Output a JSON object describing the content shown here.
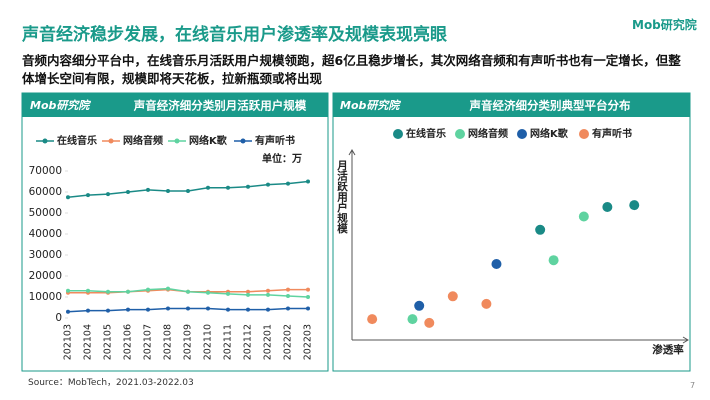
{
  "title": "声音经济稳步发展，在线音乐用户渗透率及规模表现亮眼",
  "logo": "Mob研究院",
  "subtitle": "音频内容细分平台中，在线音乐月活跃用户规模领跑，超6亿且稳步增长，其次网络音频和有声听书也有一定增长，但整体增长空间有限，规模即将天花板，拉新瓶颈或将出现",
  "source": "Source：MobTech，2021.03-2022.03",
  "page_number": "7",
  "chart_data": [
    {
      "type": "line",
      "title": "声音经济细分类别月活跃用户规模",
      "unit": "单位：万",
      "categories": [
        "202103",
        "202104",
        "202105",
        "202106",
        "202107",
        "202108",
        "202109",
        "202110",
        "202111",
        "202112",
        "202201",
        "202202",
        "202203"
      ],
      "series": [
        {
          "name": "在线音乐",
          "color": "#1a8a86",
          "values": [
            57500,
            58500,
            59000,
            60000,
            61000,
            60500,
            60500,
            62000,
            62000,
            62500,
            63500,
            64000,
            65000
          ]
        },
        {
          "name": "网络音频",
          "color": "#f08a5d",
          "values": [
            12000,
            12000,
            12000,
            12500,
            13000,
            13500,
            12500,
            12500,
            12500,
            12500,
            13000,
            13500,
            13500
          ]
        },
        {
          "name": "网络K歌",
          "color": "#5fd3a0",
          "values": [
            13000,
            13000,
            12500,
            12500,
            13500,
            14000,
            12500,
            12000,
            11500,
            11000,
            11000,
            10500,
            10000
          ]
        },
        {
          "name": "有声听书",
          "color": "#1f5fa8",
          "values": [
            3000,
            3500,
            3500,
            4000,
            4000,
            4500,
            4500,
            4500,
            4000,
            4000,
            4000,
            4500,
            4500
          ]
        }
      ],
      "ylim": [
        0,
        70000
      ],
      "yticks": [
        0,
        10000,
        20000,
        30000,
        40000,
        50000,
        60000,
        70000
      ],
      "legend": "top"
    },
    {
      "type": "scatter",
      "title": "声音经济细分类别典型平台分布",
      "ylabel": "月活跃用户规模",
      "xlabel": "渗透率",
      "xlim": [
        0,
        100
      ],
      "ylim": [
        0,
        100
      ],
      "series": [
        {
          "name": "在线音乐",
          "color": "#1a8a86",
          "x": [
            56,
            76,
            84
          ],
          "values": [
            58,
            70,
            71
          ]
        },
        {
          "name": "网络音频",
          "color": "#5fd3a0",
          "x": [
            18,
            60,
            69
          ],
          "values": [
            11,
            42,
            65
          ]
        },
        {
          "name": "网络K歌",
          "color": "#1f5fa8",
          "x": [
            20,
            43
          ],
          "values": [
            18,
            40
          ]
        },
        {
          "name": "有声听书",
          "color": "#f08a5d",
          "x": [
            6,
            23,
            30,
            40
          ],
          "values": [
            11,
            9,
            23,
            19
          ]
        }
      ],
      "legend": "top"
    }
  ]
}
